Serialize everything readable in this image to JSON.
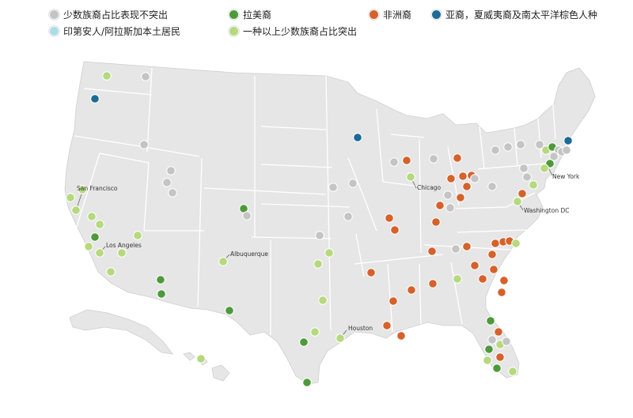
{
  "legend": [
    {
      "key": "minority_not_prominent",
      "label": "少数族裔占比表现不突出",
      "color": "#c4c4c4"
    },
    {
      "key": "hispanic",
      "label": "拉美裔",
      "color": "#4e9a3a"
    },
    {
      "key": "black",
      "label": "非洲裔",
      "color": "#d6612a"
    },
    {
      "key": "asian_pacific",
      "label": "亚裔，夏威夷裔及南太平洋棕色人种",
      "color": "#1b6b96"
    },
    {
      "key": "native",
      "label": "印第安人/阿拉斯加本土居民",
      "color": "#a9dde8"
    },
    {
      "key": "multi_minority",
      "label": "一种以上少数族裔占比突出",
      "color": "#b5d97c"
    }
  ],
  "map_colors": {
    "land": "#e6e6e6",
    "border": "#ffffff",
    "coast": "#cfcfcf"
  },
  "cities": [
    {
      "name": "San Francisco"
    },
    {
      "name": "Los Angeles"
    },
    {
      "name": "Albuquerque"
    },
    {
      "name": "Chicago"
    },
    {
      "name": "New York"
    },
    {
      "name": "Washington DC"
    },
    {
      "name": "Houston"
    }
  ]
}
